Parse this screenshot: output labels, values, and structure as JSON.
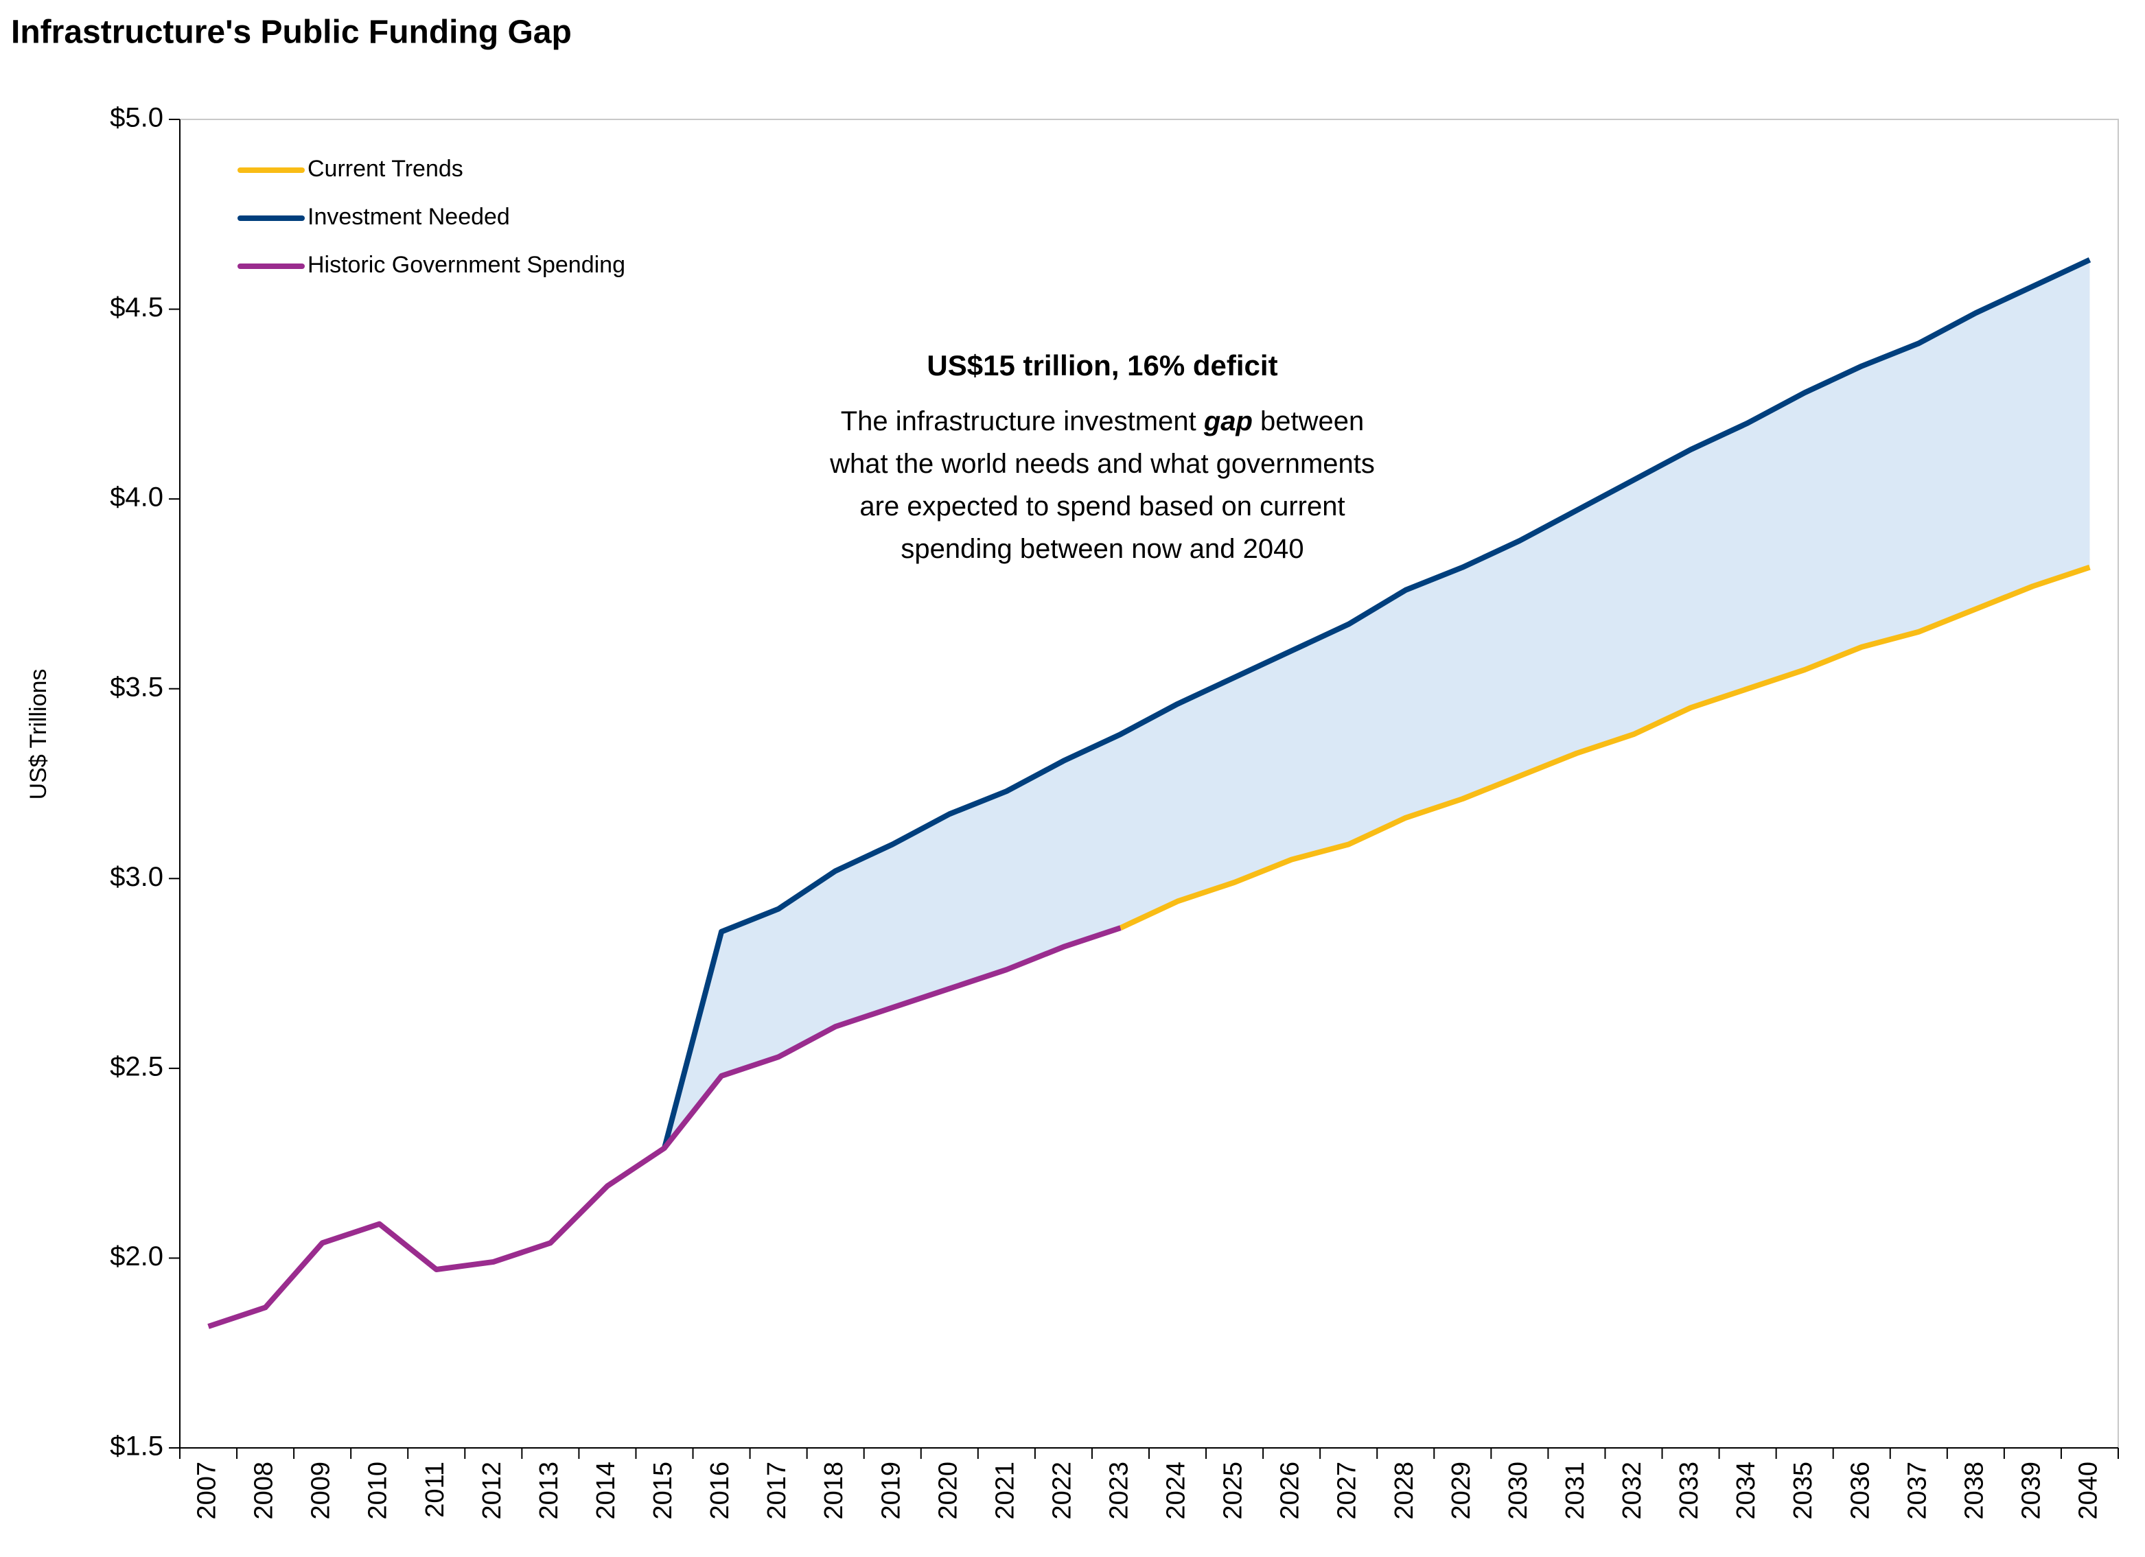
{
  "chart_data": {
    "type": "line",
    "title": "Infrastructure's Public Funding Gap",
    "y_label": "US$ Trillions",
    "categories": [
      "2007",
      "2008",
      "2009",
      "2010",
      "2011",
      "2012",
      "2013",
      "2014",
      "2015",
      "2016",
      "2017",
      "2018",
      "2019",
      "2020",
      "2021",
      "2022",
      "2023",
      "2024",
      "2025",
      "2026",
      "2027",
      "2028",
      "2029",
      "2030",
      "2031",
      "2032",
      "2033",
      "2034",
      "2035",
      "2036",
      "2037",
      "2038",
      "2039",
      "2040"
    ],
    "series": [
      {
        "name": "Current Trends",
        "color": "#f9bc15",
        "values": [
          null,
          null,
          null,
          null,
          null,
          null,
          null,
          null,
          null,
          null,
          null,
          null,
          null,
          null,
          null,
          null,
          2.87,
          2.94,
          2.99,
          3.05,
          3.09,
          3.16,
          3.21,
          3.27,
          3.33,
          3.38,
          3.45,
          3.5,
          3.55,
          3.61,
          3.65,
          3.71,
          3.77,
          3.82
        ]
      },
      {
        "name": "Investment Needed",
        "color": "#003f7d",
        "values": [
          null,
          null,
          null,
          null,
          null,
          null,
          null,
          null,
          2.29,
          2.86,
          2.92,
          3.02,
          3.09,
          3.17,
          3.23,
          3.31,
          3.38,
          3.46,
          3.53,
          3.6,
          3.67,
          3.76,
          3.82,
          3.89,
          3.97,
          4.05,
          4.13,
          4.2,
          4.28,
          4.35,
          4.41,
          4.49,
          4.56,
          4.63
        ]
      },
      {
        "name": "Historic Government Spending",
        "color": "#9a2c8e",
        "values": [
          1.82,
          1.87,
          2.04,
          2.09,
          1.97,
          1.99,
          2.04,
          2.19,
          2.29,
          2.48,
          2.53,
          2.61,
          2.66,
          2.71,
          2.76,
          2.82,
          2.87,
          null,
          null,
          null,
          null,
          null,
          null,
          null,
          null,
          null,
          null,
          null,
          null,
          null,
          null,
          null,
          null,
          null
        ]
      }
    ],
    "gap_color": "#dae8f6",
    "ylim": [
      1.5,
      5.0
    ],
    "yticks": [
      {
        "value": 1.5,
        "label": "$1.5"
      },
      {
        "value": 2.0,
        "label": "$2.0"
      },
      {
        "value": 2.5,
        "label": "$2.5"
      },
      {
        "value": 3.0,
        "label": "$3.0"
      },
      {
        "value": 3.5,
        "label": "$3.5"
      },
      {
        "value": 4.0,
        "label": "$4.0"
      },
      {
        "value": 4.5,
        "label": "$4.5"
      },
      {
        "value": 5.0,
        "label": "$5.0"
      }
    ],
    "legend": "top-left",
    "annotation": {
      "title": "US$15 trillion, 16% deficit",
      "lines": [
        [
          "The infrastructure investment ",
          "gap",
          " between"
        ],
        [
          "what the world needs and what governments"
        ],
        [
          "are expected to spend based on current"
        ],
        [
          "spending between now and 2040"
        ]
      ]
    }
  }
}
